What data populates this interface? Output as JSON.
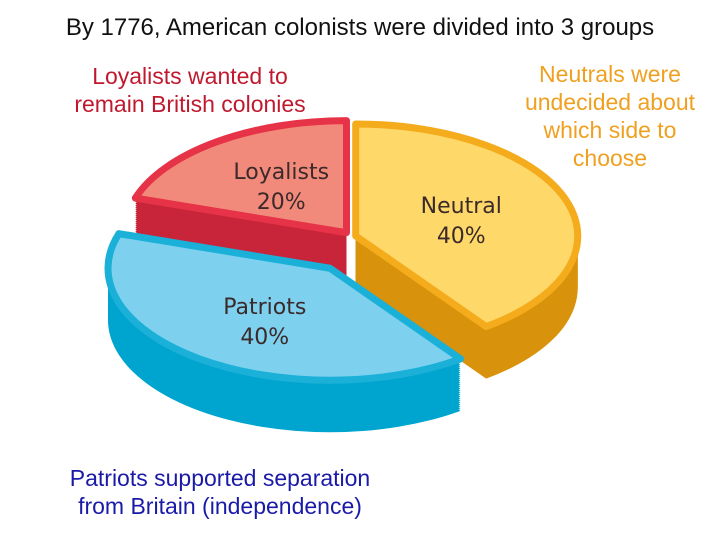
{
  "chart_data": {
    "type": "pie",
    "title": "By 1776, American colonists were divided into 3 groups",
    "slices": [
      {
        "label": "Neutral",
        "value": 40,
        "value_label": "40%",
        "top": "#ffd86a",
        "edge": "#f4ab1c",
        "side": "#d9920c",
        "text": "#3a2d10",
        "annotation": "Neutrals were\nundecided about\nwhich side to\nchoose"
      },
      {
        "label": "Patriots",
        "value": 40,
        "value_label": "40%",
        "top": "#7dd0ee",
        "edge": "#1ab0d8",
        "side": "#00a5cf",
        "text": "#1e3048",
        "exploded": true,
        "annotation": "Patriots supported separation\nfrom Britain (independence)"
      },
      {
        "label": "Loyalists",
        "value": 20,
        "value_label": "20%",
        "top": "#f28a7c",
        "edge": "#e63348",
        "side": "#c8243a",
        "text": "#4a1c1c",
        "annotation": "Loyalists wanted to\nremain British colonies"
      }
    ],
    "style": "3d-exploded"
  }
}
